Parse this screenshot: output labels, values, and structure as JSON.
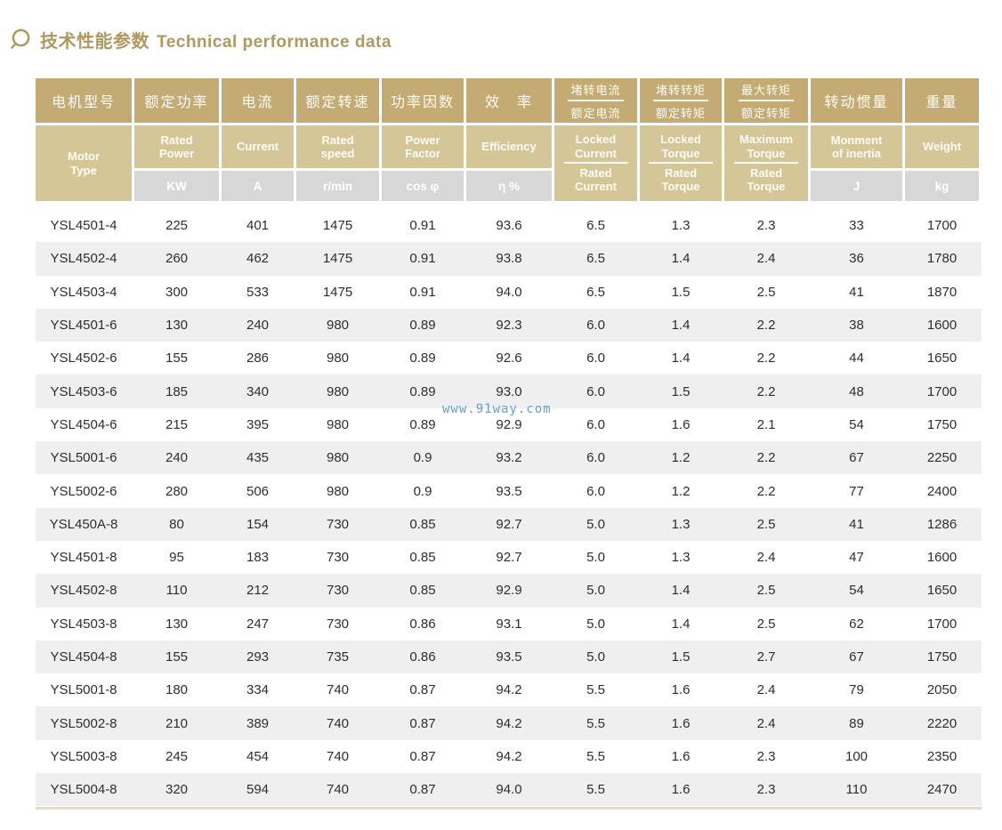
{
  "header": {
    "title_zh": "技术性能参数",
    "title_en": "Technical performance data",
    "icon": "magnifier-icon",
    "title_color": "#b1985f"
  },
  "watermark": {
    "text": "www.91way.com",
    "color": "#5f9fd6"
  },
  "colors": {
    "header_row1_gold": "#c3ab73",
    "header_row2_tan": "#d5c698",
    "unit_row_gray": "#d7d7d7",
    "zebra_stripe": "#efefef",
    "body_text": "#2e2e2e",
    "bottom_rule": "#e5dcbe"
  },
  "table": {
    "columns": [
      {
        "zh": [
          "电机型号"
        ],
        "en": [
          "Motor",
          "Type"
        ],
        "unit": null,
        "fraction": false
      },
      {
        "zh": [
          "额定功率"
        ],
        "en": [
          "Rated",
          "Power"
        ],
        "unit": "KW",
        "fraction": false
      },
      {
        "zh": [
          "电流"
        ],
        "en": [
          "Current"
        ],
        "unit": "A",
        "fraction": false
      },
      {
        "zh": [
          "额定转速"
        ],
        "en": [
          "Rated",
          "speed"
        ],
        "unit": "r/min",
        "fraction": false
      },
      {
        "zh": [
          "功率因数"
        ],
        "en": [
          "Power",
          "Factor"
        ],
        "unit": "cos φ",
        "fraction": false
      },
      {
        "zh": [
          "效　率"
        ],
        "en": [
          "Efficiency"
        ],
        "unit": "η %",
        "fraction": false
      },
      {
        "zh": [
          "堵转电流",
          "额定电流"
        ],
        "en": [
          "Locked Current",
          "Rated Current"
        ],
        "unit": null,
        "fraction": true
      },
      {
        "zh": [
          "堵转转矩",
          "额定转矩"
        ],
        "en": [
          "Locked Torque",
          "Rated Torque"
        ],
        "unit": null,
        "fraction": true
      },
      {
        "zh": [
          "最大转矩",
          "额定转矩"
        ],
        "en": [
          "Maximum Torque",
          "Rated Torque"
        ],
        "unit": null,
        "fraction": true
      },
      {
        "zh": [
          "转动惯量"
        ],
        "en": [
          "Monment",
          "of inertia"
        ],
        "unit": "J",
        "fraction": false
      },
      {
        "zh": [
          "重量"
        ],
        "en": [
          "Weight"
        ],
        "unit": "kg",
        "fraction": false
      }
    ],
    "rows": [
      [
        "YSL4501-4",
        "225",
        "401",
        "1475",
        "0.91",
        "93.6",
        "6.5",
        "1.3",
        "2.3",
        "33",
        "1700"
      ],
      [
        "YSL4502-4",
        "260",
        "462",
        "1475",
        "0.91",
        "93.8",
        "6.5",
        "1.4",
        "2.4",
        "36",
        "1780"
      ],
      [
        "YSL4503-4",
        "300",
        "533",
        "1475",
        "0.91",
        "94.0",
        "6.5",
        "1.5",
        "2.5",
        "41",
        "1870"
      ],
      [
        "YSL4501-6",
        "130",
        "240",
        "980",
        "0.89",
        "92.3",
        "6.0",
        "1.4",
        "2.2",
        "38",
        "1600"
      ],
      [
        "YSL4502-6",
        "155",
        "286",
        "980",
        "0.89",
        "92.6",
        "6.0",
        "1.4",
        "2.2",
        "44",
        "1650"
      ],
      [
        "YSL4503-6",
        "185",
        "340",
        "980",
        "0.89",
        "93.0",
        "6.0",
        "1.5",
        "2.2",
        "48",
        "1700"
      ],
      [
        "YSL4504-6",
        "215",
        "395",
        "980",
        "0.89",
        "92.9",
        "6.0",
        "1.6",
        "2.1",
        "54",
        "1750"
      ],
      [
        "YSL5001-6",
        "240",
        "435",
        "980",
        "0.9",
        "93.2",
        "6.0",
        "1.2",
        "2.2",
        "67",
        "2250"
      ],
      [
        "YSL5002-6",
        "280",
        "506",
        "980",
        "0.9",
        "93.5",
        "6.0",
        "1.2",
        "2.2",
        "77",
        "2400"
      ],
      [
        "YSL450A-8",
        "80",
        "154",
        "730",
        "0.85",
        "92.7",
        "5.0",
        "1.3",
        "2.5",
        "41",
        "1286"
      ],
      [
        "YSL4501-8",
        "95",
        "183",
        "730",
        "0.85",
        "92.7",
        "5.0",
        "1.3",
        "2.4",
        "47",
        "1600"
      ],
      [
        "YSL4502-8",
        "110",
        "212",
        "730",
        "0.85",
        "92.9",
        "5.0",
        "1.4",
        "2.5",
        "54",
        "1650"
      ],
      [
        "YSL4503-8",
        "130",
        "247",
        "730",
        "0.86",
        "93.1",
        "5.0",
        "1.4",
        "2.5",
        "62",
        "1700"
      ],
      [
        "YSL4504-8",
        "155",
        "293",
        "735",
        "0.86",
        "93.5",
        "5.0",
        "1.5",
        "2.7",
        "67",
        "1750"
      ],
      [
        "YSL5001-8",
        "180",
        "334",
        "740",
        "0.87",
        "94.2",
        "5.5",
        "1.6",
        "2.4",
        "79",
        "2050"
      ],
      [
        "YSL5002-8",
        "210",
        "389",
        "740",
        "0.87",
        "94.2",
        "5.5",
        "1.6",
        "2.4",
        "89",
        "2220"
      ],
      [
        "YSL5003-8",
        "245",
        "454",
        "740",
        "0.87",
        "94.2",
        "5.5",
        "1.6",
        "2.3",
        "100",
        "2350"
      ],
      [
        "YSL5004-8",
        "320",
        "594",
        "740",
        "0.87",
        "94.0",
        "5.5",
        "1.6",
        "2.3",
        "110",
        "2470"
      ]
    ]
  }
}
